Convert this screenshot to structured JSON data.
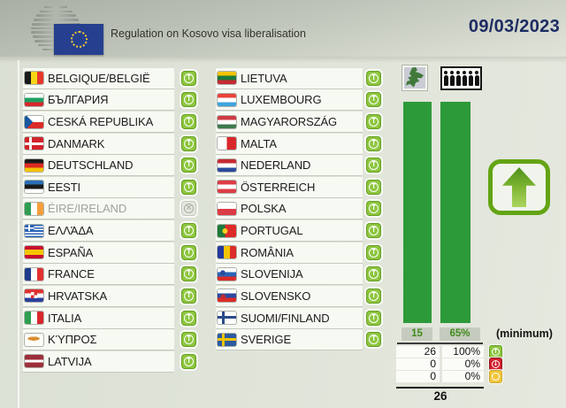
{
  "header": {
    "title": "Regulation on Kosovo visa liberalisation",
    "date": "09/03/2023"
  },
  "colors": {
    "bar-green": "#2c9a38",
    "vote-green": "#8dc63f",
    "vote-red": "#d3202f",
    "vote-yellow": "#f0c63c",
    "date-navy": "#1d2c63",
    "threshold-green": "#3f8c1d"
  },
  "countries": {
    "left": [
      {
        "name": "BELGIQUE/BELGIË",
        "vote": "for",
        "flag": "linear-gradient(to right,#1a1a1a 0 33%,#f7d618 33% 67%,#e8372c 67%)"
      },
      {
        "name": "БЪЛГАРИЯ",
        "vote": "for",
        "flag": "linear-gradient(#fff 0 33%,#1e9e62 33% 67%,#d8272c 67%)"
      },
      {
        "name": "CESKÁ REPUBLIKA",
        "vote": "for",
        "flag": "conic-gradient(from 225deg at 45% 50%,#17579e 0 90deg,rgba(0,0,0,0) 90deg), linear-gradient(#fff 0 50%,#dc2b28 50%)"
      },
      {
        "name": "DANMARK",
        "vote": "for",
        "flag": "linear-gradient(#fff 0 0) 0 50%/100% 22% no-repeat, linear-gradient(#fff 0 0) 30% 0/14% 100% no-repeat, #d2232a"
      },
      {
        "name": "DEUTSCHLAND",
        "vote": "for",
        "flag": "linear-gradient(#1a1a1a 0 33%,#dd2c23 33% 67%,#f5c400 67%)"
      },
      {
        "name": "EESTI",
        "vote": "for",
        "flag": "linear-gradient(#2a6fb5 0 33%,#1a1a1a 33% 67%,#fff 67%)"
      },
      {
        "name": "ÉIRE/IRELAND",
        "vote": "none",
        "flag": "linear-gradient(to right,#2e9e52 0 33%,#fff 33% 67%,#f59e3c 67%)"
      },
      {
        "name": "ΕΛΛΆΔΑ",
        "vote": "for",
        "flag": "linear-gradient(#fff 0 0) 0 25%/50% 11% no-repeat, linear-gradient(#fff 0 0) 22% 0/11% 50% no-repeat, linear-gradient(#2a63b5 0 0) 0 0/50% 50% no-repeat, linear-gradient(#2a63b5 0 11%,#fff 11% 22%,#2a63b5 22% 33%,#fff 33% 44%,#2a63b5 44% 56%,#fff 56% 67%,#2a63b5 67% 78%,#fff 78% 89%,#2a63b5 89%)"
      },
      {
        "name": "ESPAÑA",
        "vote": "for",
        "flag": "linear-gradient(#c8102e 0 27%,#f6c500 27% 73%,#c8102e 73%)"
      },
      {
        "name": "FRANCE",
        "vote": "for",
        "flag": "linear-gradient(to right,#1f3c8c 0 33%,#fff 33% 67%,#e03131 67%)"
      },
      {
        "name": "HRVATSKA",
        "vote": "for",
        "flag": "conic-gradient(from 0deg at 50% 50%,#e03131 0 90deg,#fff 90deg 180deg,#e03131 180deg 270deg,#fff 270deg) 50% 42%/34% 50% no-repeat, linear-gradient(#e03131 0 33%,#fff 33% 67%,#2a3f9e 67%)"
      },
      {
        "name": "ITALIA",
        "vote": "for",
        "flag": "linear-gradient(to right,#2f9e4f 0 33%,#fff 33% 67%,#d8272c 67%)"
      },
      {
        "name": "ΚΎΠΡΟΣ",
        "vote": "for",
        "flag": "radial-gradient(ellipse 32% 16% at 48% 40%,#d98f32 0 99%,rgba(0,0,0,0) 100%),#fcfcf8"
      },
      {
        "name": "LATVIJA",
        "vote": "for",
        "flag": "linear-gradient(#9c2f39 0 40%,#fff 40% 60%,#9c2f39 60%)"
      }
    ],
    "right": [
      {
        "name": "LIETUVA",
        "vote": "for",
        "flag": "linear-gradient(#f5c400 0 33%,#1d7a3c 33% 67%,#c52a32 67%)"
      },
      {
        "name": "LUXEMBOURG",
        "vote": "for",
        "flag": "linear-gradient(#e8433c 0 33%,#fff 33% 67%,#3fa3dc 67%)"
      },
      {
        "name": "MAGYARORSZÁG",
        "vote": "for",
        "flag": "linear-gradient(#cf3a43 0 33%,#fff 33% 67%,#3e7a4e 67%)"
      },
      {
        "name": "MALTA",
        "vote": "for",
        "flag": "linear-gradient(to right,#fdfdfb 0 50%,#d8272c 50%)"
      },
      {
        "name": "NEDERLAND",
        "vote": "for",
        "flag": "linear-gradient(#c52a32 0 33%,#fff 33% 67%,#2a4a9e 67%)"
      },
      {
        "name": "ÖSTERREICH",
        "vote": "for",
        "flag": "linear-gradient(#dc3c46 0 33%,#fff 33% 67%,#dc3c46 67%)"
      },
      {
        "name": "POLSKA",
        "vote": "for",
        "flag": "linear-gradient(#fdfdfb 0 50%,#dc3c46 50%)"
      },
      {
        "name": "PORTUGAL",
        "vote": "for",
        "flag": "radial-gradient(circle at 40% 50%,#f5d020 0 20%,rgba(0,0,0,0) 21%), linear-gradient(to right,#1d7a3c 0 40%,#dc2b28 40%)"
      },
      {
        "name": "ROMÂNIA",
        "vote": "for",
        "flag": "linear-gradient(to right,#23379e 0 33%,#f5c400 33% 67%,#dc2b28 67%)"
      },
      {
        "name": "SLOVENIJA",
        "vote": "for",
        "flag": "radial-gradient(circle at 28% 38%,#2a4a9e 0 16%,rgba(0,0,0,0) 17%), linear-gradient(#fff 0 33%,#2a63b5 33% 67%,#dc2b28 67%)"
      },
      {
        "name": "SLOVENSKO",
        "vote": "for",
        "flag": "radial-gradient(circle at 30% 60%,#c52a32 0 16%,rgba(0,0,0,0) 17%), linear-gradient(#fff 0 33%,#2a4a9e 33% 67%,#dc2b28 67%)"
      },
      {
        "name": "SUOMI/FINLAND",
        "vote": "for",
        "flag": "linear-gradient(#2a4a8c 0 0) 0 50%/100% 24% no-repeat, linear-gradient(#2a4a8c 0 0) 30% 0/16% 100% no-repeat, #fff"
      },
      {
        "name": "SVERIGE",
        "vote": "for",
        "flag": "linear-gradient(#f5c400 0 0) 0 50%/100% 22% no-repeat, linear-gradient(#f5c400 0 0) 30% 0/14% 100% no-repeat, #2a5aa0"
      }
    ]
  },
  "results": {
    "bars": [
      {
        "icon": "member-states-map-icon",
        "threshold": "15",
        "value_pct": 100
      },
      {
        "icon": "population-people-icon",
        "threshold": "65%",
        "value_pct": 100
      }
    ],
    "minimum_label": "(minimum)",
    "rows": [
      {
        "count": "26",
        "pct": "100%",
        "type": "for"
      },
      {
        "count": "0",
        "pct": "0%",
        "type": "against"
      },
      {
        "count": "0",
        "pct": "0%",
        "type": "abstain"
      }
    ],
    "total": "26",
    "outcome": "in-favour-up-arrow"
  },
  "chart_data": {
    "type": "bar",
    "categories": [
      "member states",
      "population"
    ],
    "values": [
      100,
      100
    ],
    "ylim": [
      0,
      100
    ],
    "annotations": [
      "15",
      "65%",
      "(minimum)"
    ],
    "tally": {
      "in_favour": {
        "count": 26,
        "pct": "100%"
      },
      "against": {
        "count": 0,
        "pct": "0%"
      },
      "abstentions": {
        "count": 0,
        "pct": "0%"
      },
      "total": 26
    },
    "legend_position": "right",
    "grid": false
  }
}
